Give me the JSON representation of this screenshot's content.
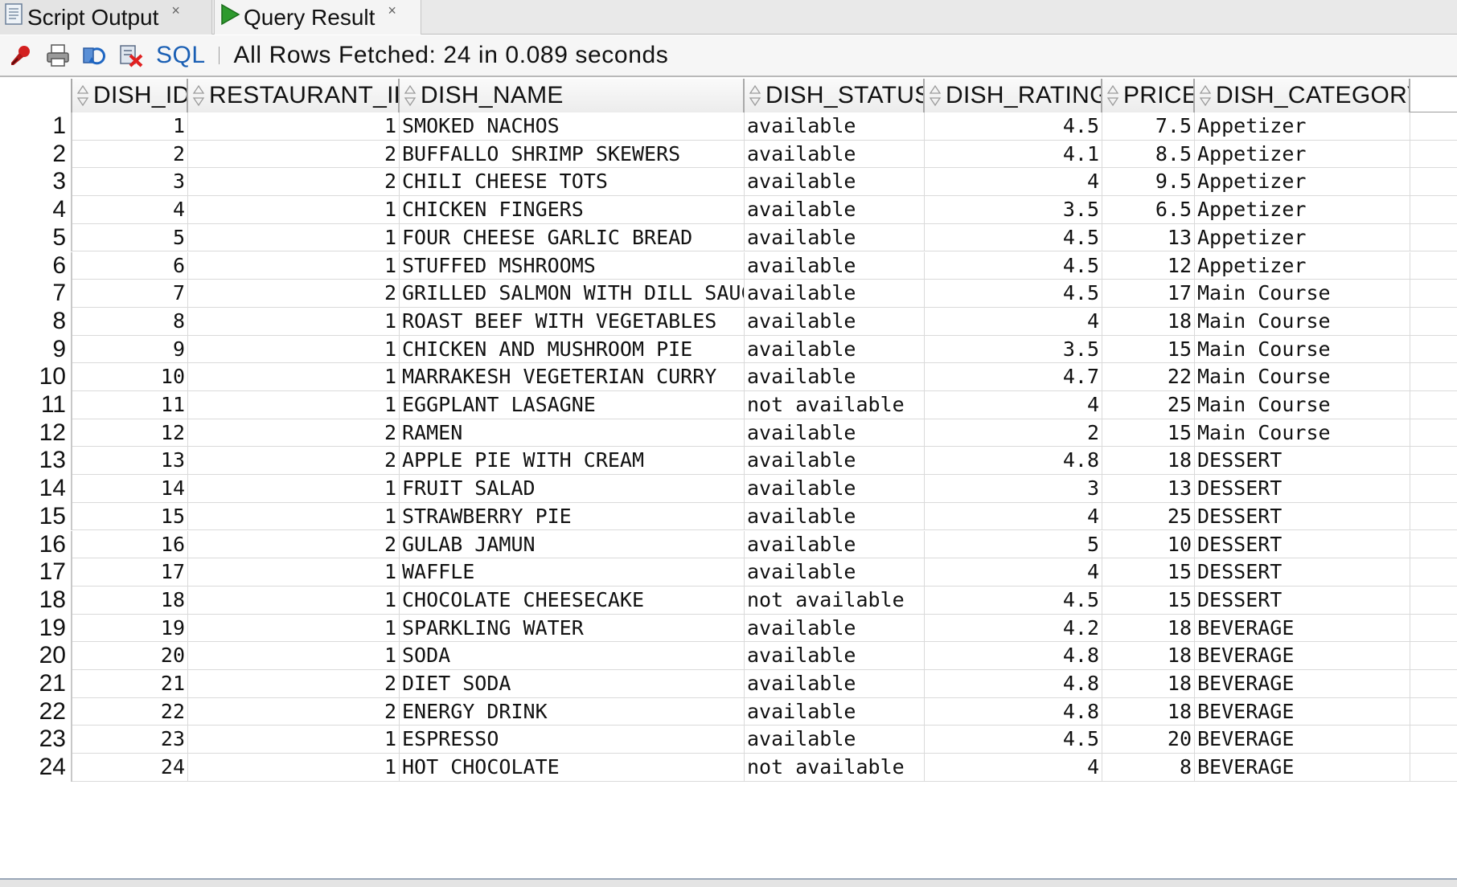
{
  "tabs": [
    {
      "label": "Script Output",
      "close": "×",
      "icon": "script-doc-icon"
    },
    {
      "label": "Query Result",
      "close": "×",
      "icon": "run-play-icon"
    }
  ],
  "toolbar": {
    "icons": [
      "pin-icon",
      "print-icon",
      "refresh-icon",
      "cancel-icon"
    ],
    "sql_label": "SQL",
    "status": "All Rows Fetched: 24 in 0.089 seconds"
  },
  "colors": {
    "accent_green": "#2e9a2e",
    "pin_red": "#d32020",
    "sql_blue": "#1a5fb4"
  },
  "table": {
    "columns": [
      "DISH_ID",
      "RESTAURANT_ID",
      "DISH_NAME",
      "DISH_STATUS",
      "DISH_RATING",
      "PRICE",
      "DISH_CATEGORY"
    ],
    "rows": [
      {
        "n": "1",
        "id": "1",
        "rid": "1",
        "name": "SMOKED NACHOS",
        "status": "available",
        "rating": "4.5",
        "price": "7.5",
        "cat": "Appetizer"
      },
      {
        "n": "2",
        "id": "2",
        "rid": "2",
        "name": "BUFFALLO SHRIMP SKEWERS",
        "status": "available",
        "rating": "4.1",
        "price": "8.5",
        "cat": "Appetizer"
      },
      {
        "n": "3",
        "id": "3",
        "rid": "2",
        "name": "CHILI CHEESE TOTS",
        "status": "available",
        "rating": "4",
        "price": "9.5",
        "cat": "Appetizer"
      },
      {
        "n": "4",
        "id": "4",
        "rid": "1",
        "name": "CHICKEN FINGERS",
        "status": "available",
        "rating": "3.5",
        "price": "6.5",
        "cat": "Appetizer"
      },
      {
        "n": "5",
        "id": "5",
        "rid": "1",
        "name": "FOUR CHEESE GARLIC BREAD",
        "status": "available",
        "rating": "4.5",
        "price": "13",
        "cat": "Appetizer"
      },
      {
        "n": "6",
        "id": "6",
        "rid": "1",
        "name": "STUFFED MSHROOMS",
        "status": "available",
        "rating": "4.5",
        "price": "12",
        "cat": "Appetizer"
      },
      {
        "n": "7",
        "id": "7",
        "rid": "2",
        "name": "GRILLED SALMON WITH DILL SAUCE",
        "status": "available",
        "rating": "4.5",
        "price": "17",
        "cat": "Main Course"
      },
      {
        "n": "8",
        "id": "8",
        "rid": "1",
        "name": "ROAST BEEF WITH VEGETABLES",
        "status": "available",
        "rating": "4",
        "price": "18",
        "cat": "Main Course"
      },
      {
        "n": "9",
        "id": "9",
        "rid": "1",
        "name": "CHICKEN AND MUSHROOM PIE",
        "status": "available",
        "rating": "3.5",
        "price": "15",
        "cat": "Main Course"
      },
      {
        "n": "10",
        "id": "10",
        "rid": "1",
        "name": "MARRAKESH VEGETERIAN CURRY",
        "status": "available",
        "rating": "4.7",
        "price": "22",
        "cat": "Main Course"
      },
      {
        "n": "11",
        "id": "11",
        "rid": "1",
        "name": "EGGPLANT LASAGNE",
        "status": "not available",
        "rating": "4",
        "price": "25",
        "cat": "Main Course"
      },
      {
        "n": "12",
        "id": "12",
        "rid": "2",
        "name": "RAMEN",
        "status": "available",
        "rating": "2",
        "price": "15",
        "cat": "Main Course"
      },
      {
        "n": "13",
        "id": "13",
        "rid": "2",
        "name": "APPLE PIE WITH CREAM",
        "status": "available",
        "rating": "4.8",
        "price": "18",
        "cat": "DESSERT"
      },
      {
        "n": "14",
        "id": "14",
        "rid": "1",
        "name": "FRUIT SALAD",
        "status": "available",
        "rating": "3",
        "price": "13",
        "cat": "DESSERT"
      },
      {
        "n": "15",
        "id": "15",
        "rid": "1",
        "name": "STRAWBERRY PIE",
        "status": "available",
        "rating": "4",
        "price": "25",
        "cat": "DESSERT"
      },
      {
        "n": "16",
        "id": "16",
        "rid": "2",
        "name": "GULAB JAMUN",
        "status": "available",
        "rating": "5",
        "price": "10",
        "cat": "DESSERT"
      },
      {
        "n": "17",
        "id": "17",
        "rid": "1",
        "name": "WAFFLE",
        "status": "available",
        "rating": "4",
        "price": "15",
        "cat": "DESSERT"
      },
      {
        "n": "18",
        "id": "18",
        "rid": "1",
        "name": "CHOCOLATE CHEESECAKE",
        "status": "not available",
        "rating": "4.5",
        "price": "15",
        "cat": "DESSERT"
      },
      {
        "n": "19",
        "id": "19",
        "rid": "1",
        "name": "SPARKLING WATER",
        "status": "available",
        "rating": "4.2",
        "price": "18",
        "cat": "BEVERAGE"
      },
      {
        "n": "20",
        "id": "20",
        "rid": "1",
        "name": "SODA",
        "status": "available",
        "rating": "4.8",
        "price": "18",
        "cat": "BEVERAGE"
      },
      {
        "n": "21",
        "id": "21",
        "rid": "2",
        "name": "DIET SODA",
        "status": "available",
        "rating": "4.8",
        "price": "18",
        "cat": "BEVERAGE"
      },
      {
        "n": "22",
        "id": "22",
        "rid": "2",
        "name": "ENERGY DRINK",
        "status": "available",
        "rating": "4.8",
        "price": "18",
        "cat": "BEVERAGE"
      },
      {
        "n": "23",
        "id": "23",
        "rid": "1",
        "name": "ESPRESSO",
        "status": "available",
        "rating": "4.5",
        "price": "20",
        "cat": "BEVERAGE"
      },
      {
        "n": "24",
        "id": "24",
        "rid": "1",
        "name": "HOT CHOCOLATE",
        "status": "not available",
        "rating": "4",
        "price": "8",
        "cat": "BEVERAGE"
      }
    ]
  }
}
